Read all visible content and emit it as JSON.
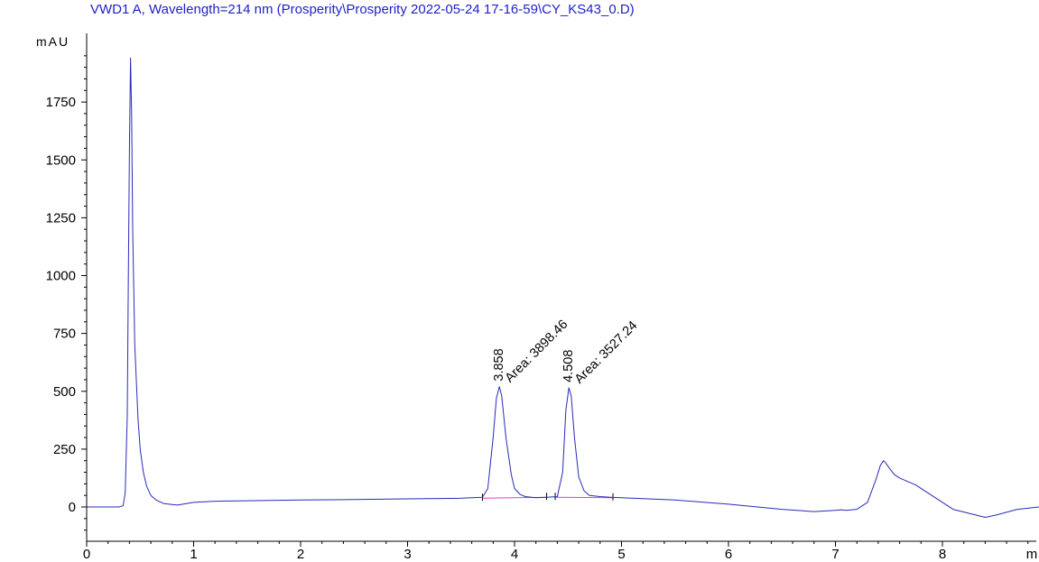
{
  "header": {
    "signal_title": "VWD1 A, Wavelength=214 nm (Prosperity\\Prosperity 2022-05-24 17-16-59\\CY_KS43_0.D)"
  },
  "chart_data": {
    "type": "line",
    "title": "VWD1 A, Wavelength=214 nm (Prosperity\\Prosperity 2022-05-24 17-16-59\\CY_KS43_0.D)",
    "ylabel": "mAU",
    "xlabel": "m",
    "xlim": [
      0,
      9.05
    ],
    "ylim": [
      -160,
      1980
    ],
    "x_ticks": [
      0,
      1,
      2,
      3,
      4,
      5,
      6,
      7,
      8
    ],
    "y_ticks": [
      0,
      250,
      500,
      750,
      1000,
      1250,
      1500,
      1750
    ],
    "colors": {
      "signal": "#2a2ab8",
      "baseline": "#e040c8",
      "axis": "#000000"
    },
    "series": [
      {
        "x": [
          0.0,
          0.3,
          0.34,
          0.36,
          0.38,
          0.39,
          0.4,
          0.41,
          0.42,
          0.43,
          0.45,
          0.48,
          0.5,
          0.53,
          0.56,
          0.6,
          0.65,
          0.72,
          0.85,
          1.0,
          1.2,
          1.5,
          2.0,
          2.5,
          3.0,
          3.5,
          3.7,
          3.75,
          3.8,
          3.83,
          3.858,
          3.88,
          3.92,
          3.97,
          4.0,
          4.05,
          4.1,
          4.2,
          4.3,
          4.4,
          4.45,
          4.48,
          4.508,
          4.53,
          4.56,
          4.6,
          4.65,
          4.7,
          4.8,
          4.9,
          5.0,
          5.5,
          6.0,
          6.5,
          6.8,
          7.0,
          7.05,
          7.1,
          7.2,
          7.3,
          7.38,
          7.42,
          7.45,
          7.47,
          7.5,
          7.55,
          7.6,
          7.75,
          7.9,
          8.1,
          8.4,
          8.5,
          8.7,
          8.9,
          9.05
        ],
        "y": [
          0,
          0,
          5,
          60,
          400,
          1000,
          1550,
          1940,
          1700,
          1200,
          700,
          380,
          250,
          150,
          90,
          50,
          30,
          15,
          8,
          20,
          25,
          27,
          30,
          32,
          35,
          38,
          42,
          80,
          300,
          470,
          520,
          480,
          300,
          140,
          80,
          55,
          45,
          40,
          42,
          45,
          150,
          420,
          515,
          480,
          300,
          130,
          70,
          50,
          45,
          42,
          40,
          30,
          12,
          -10,
          -20,
          -15,
          -12,
          -15,
          -10,
          20,
          120,
          180,
          200,
          190,
          170,
          140,
          125,
          95,
          50,
          -10,
          -45,
          -35,
          -10,
          0,
          0
        ]
      }
    ],
    "baseline": {
      "x": [
        3.7,
        4.3,
        4.38,
        4.92
      ],
      "y": [
        38,
        42,
        42,
        40
      ]
    },
    "peaks": [
      {
        "rt": "3.858",
        "area": "Area: 3898.46",
        "x": 3.858,
        "y": 520
      },
      {
        "rt": "4.508",
        "area": "Area: 3527.24",
        "x": 4.508,
        "y": 515
      }
    ]
  }
}
